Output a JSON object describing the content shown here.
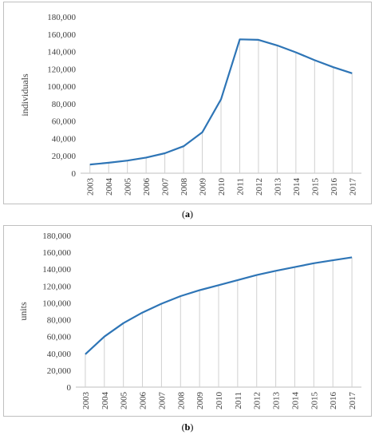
{
  "chart_data": [
    {
      "type": "line",
      "ylabel": "individuals",
      "xlabel": "",
      "caption_letter": "a",
      "x": [
        "2003",
        "2004",
        "2005",
        "2006",
        "2007",
        "2008",
        "2009",
        "2010",
        "2011",
        "2012",
        "2013",
        "2014",
        "2015",
        "2016",
        "2017"
      ],
      "values": [
        10000,
        12000,
        14500,
        18000,
        23000,
        31000,
        47000,
        85000,
        154000,
        153500,
        147000,
        139000,
        130000,
        122000,
        115000
      ],
      "ylim": [
        0,
        180000
      ],
      "yticks": [
        "0",
        "20,000",
        "40,000",
        "60,000",
        "80,000",
        "100,000",
        "120,000",
        "140,000",
        "160,000",
        "180,000"
      ],
      "grid": "vertical drop lines",
      "color": "#2e75b6"
    },
    {
      "type": "line",
      "ylabel": "units",
      "xlabel": "",
      "caption_letter": "b",
      "x": [
        "2003",
        "2004",
        "2005",
        "2006",
        "2007",
        "2008",
        "2009",
        "2010",
        "2011",
        "2012",
        "2013",
        "2014",
        "2015",
        "2016",
        "2017"
      ],
      "values": [
        39000,
        60000,
        76000,
        88500,
        99000,
        108000,
        115000,
        121000,
        127000,
        133000,
        138000,
        142500,
        147000,
        150500,
        154000
      ],
      "ylim": [
        0,
        180000
      ],
      "yticks": [
        "0",
        "20,000",
        "40,000",
        "60,000",
        "80,000",
        "100,000",
        "120,000",
        "140,000",
        "160,000",
        "180,000"
      ],
      "grid": "vertical drop lines",
      "color": "#2e75b6"
    }
  ]
}
